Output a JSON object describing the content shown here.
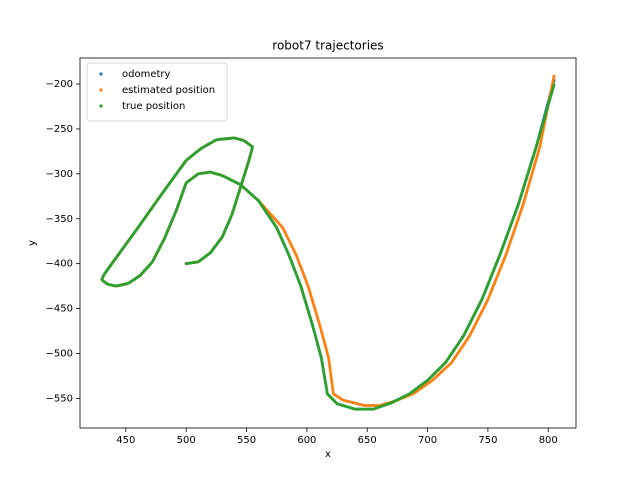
{
  "chart_data": {
    "type": "scatter",
    "title": "robot7 trajectories",
    "x_label": "x",
    "y_label": "y",
    "xlim": [
      412,
      823
    ],
    "ylim": [
      -583,
      -171
    ],
    "xticks": [
      450,
      500,
      550,
      600,
      650,
      700,
      750,
      800
    ],
    "yticks": [
      {
        "value": -200,
        "label": "−200"
      },
      {
        "value": -250,
        "label": "−250"
      },
      {
        "value": -300,
        "label": "−300"
      },
      {
        "value": -350,
        "label": "−350"
      },
      {
        "value": -400,
        "label": "−400"
      },
      {
        "value": -450,
        "label": "−450"
      },
      {
        "value": -500,
        "label": "−500"
      },
      {
        "value": -550,
        "label": "−550"
      }
    ],
    "legend": "upper left",
    "series": [
      {
        "name": "odometry",
        "color": "#1f77b4",
        "x": [
          500,
          510,
          520,
          530,
          538,
          545,
          552,
          555,
          548,
          540,
          525,
          512,
          500,
          480,
          460,
          440,
          432,
          430,
          435,
          442,
          452,
          462,
          472,
          482,
          492,
          500,
          510,
          520,
          530,
          545,
          560,
          575,
          585,
          595,
          605,
          612,
          617,
          625,
          640,
          655,
          670,
          685,
          700,
          715,
          730,
          745,
          760,
          775,
          790,
          805
        ],
        "y": [
          -400,
          -398,
          -388,
          -370,
          -345,
          -315,
          -285,
          -270,
          -263,
          -260,
          -262,
          -272,
          -285,
          -322,
          -360,
          -397,
          -412,
          -418,
          -423,
          -425,
          -422,
          -413,
          -398,
          -372,
          -340,
          -310,
          -300,
          -298,
          -302,
          -312,
          -330,
          -360,
          -390,
          -425,
          -470,
          -505,
          -545,
          -556,
          -562,
          -562,
          -555,
          -545,
          -530,
          -510,
          -480,
          -440,
          -390,
          -335,
          -270,
          -195
        ]
      },
      {
        "name": "estimated position",
        "color": "#ff7f0e",
        "x": [
          500,
          510,
          520,
          530,
          538,
          545,
          552,
          555,
          548,
          540,
          525,
          512,
          500,
          480,
          460,
          440,
          432,
          430,
          435,
          442,
          452,
          462,
          472,
          482,
          492,
          500,
          510,
          520,
          530,
          545,
          560,
          580,
          591,
          601,
          611,
          618,
          622,
          630,
          648,
          660,
          673,
          688,
          704,
          720,
          735,
          750,
          765,
          779,
          793,
          805
        ],
        "y": [
          -400,
          -398,
          -388,
          -370,
          -345,
          -315,
          -285,
          -270,
          -263,
          -260,
          -262,
          -272,
          -285,
          -322,
          -360,
          -397,
          -412,
          -418,
          -423,
          -425,
          -422,
          -413,
          -398,
          -372,
          -340,
          -310,
          -300,
          -298,
          -302,
          -312,
          -330,
          -360,
          -390,
          -425,
          -470,
          -505,
          -545,
          -552,
          -558,
          -558,
          -553,
          -545,
          -530,
          -510,
          -480,
          -440,
          -390,
          -335,
          -270,
          -190
        ]
      },
      {
        "name": "true position",
        "color": "#2ca02c",
        "x": [
          500,
          510,
          520,
          530,
          538,
          545,
          552,
          555,
          548,
          540,
          525,
          512,
          500,
          480,
          460,
          440,
          432,
          430,
          435,
          442,
          452,
          462,
          472,
          482,
          492,
          500,
          510,
          520,
          530,
          545,
          560,
          575,
          585,
          595,
          605,
          612,
          617,
          625,
          640,
          655,
          670,
          685,
          700,
          715,
          730,
          745,
          760,
          775,
          790,
          805
        ],
        "y": [
          -400,
          -398,
          -388,
          -370,
          -345,
          -315,
          -285,
          -270,
          -263,
          -260,
          -262,
          -272,
          -285,
          -322,
          -360,
          -397,
          -412,
          -418,
          -423,
          -425,
          -422,
          -413,
          -398,
          -372,
          -340,
          -310,
          -300,
          -298,
          -302,
          -312,
          -330,
          -360,
          -390,
          -425,
          -470,
          -505,
          -545,
          -556,
          -562,
          -562,
          -555,
          -545,
          -530,
          -510,
          -480,
          -440,
          -390,
          -335,
          -270,
          -200
        ]
      }
    ]
  }
}
